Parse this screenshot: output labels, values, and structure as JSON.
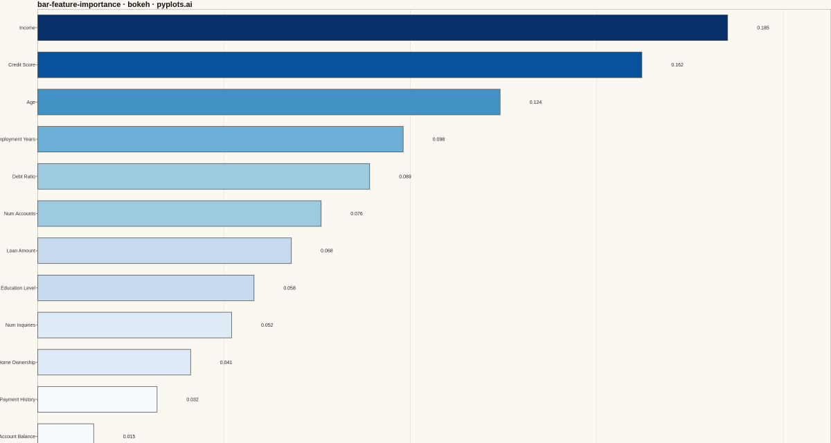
{
  "chart_data": {
    "type": "bar",
    "orientation": "horizontal",
    "title": "bar-feature-importance · bokeh · pyplots.ai",
    "xlabel": "",
    "ylabel": "",
    "xlim": [
      0,
      0.2
    ],
    "grid": true,
    "categories": [
      "Income",
      "Credit Score",
      "Age",
      "Employment Years",
      "Debt Ratio",
      "Num Accounts",
      "Loan Amount",
      "Education Level",
      "Num Inquiries",
      "Home Ownership",
      "Payment History",
      "Account Balance"
    ],
    "values": [
      0.185,
      0.162,
      0.124,
      0.098,
      0.089,
      0.076,
      0.068,
      0.058,
      0.052,
      0.041,
      0.032,
      0.015
    ],
    "value_labels": [
      "0.185",
      "0.162",
      "0.124",
      "0.098",
      "0.089",
      "0.076",
      "0.068",
      "0.058",
      "0.052",
      "0.041",
      "0.032",
      "0.015"
    ],
    "colors": [
      "#08306b",
      "#08519c",
      "#4292c6",
      "#6baed6",
      "#9ecae1",
      "#9ecae1",
      "#c6dbef",
      "#c6dbef",
      "#deebf7",
      "#deebf7",
      "#f7fbff",
      "#f7fbff"
    ],
    "background": "#fbf8f1",
    "bar_outline": "#555555"
  }
}
